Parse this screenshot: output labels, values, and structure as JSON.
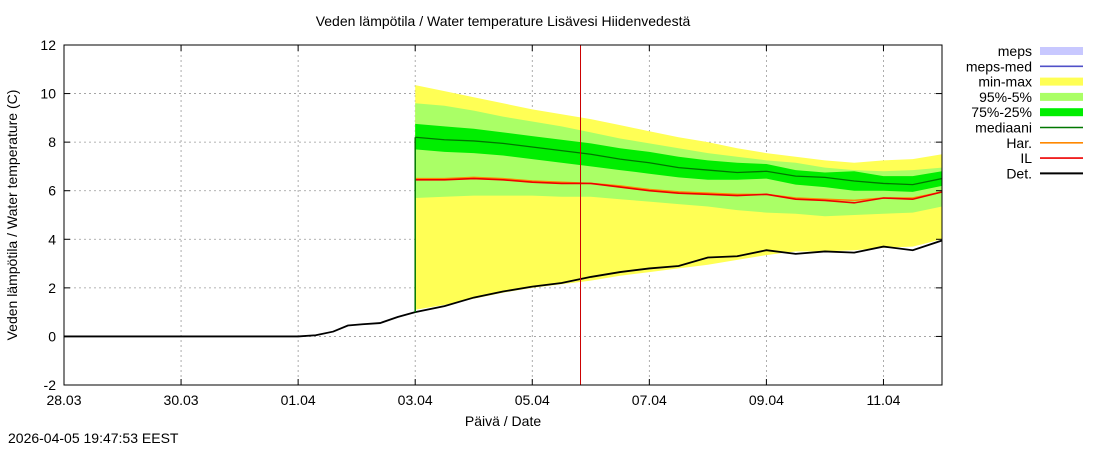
{
  "timestamp": "2026-04-05 19:47:53 EEST",
  "chart_data": {
    "type": "area",
    "title": "Veden lämpötila / Water temperature Lisävesi Hiidenvedestä",
    "xlabel": "Päivä / Date",
    "ylabel": "Veden lämpötila / Water temperature (C)",
    "x_ticks": [
      "28.03",
      "30.03",
      "01.04",
      "03.04",
      "05.04",
      "07.04",
      "09.04",
      "11.04"
    ],
    "x_range": [
      "28.03 00:00",
      "12.04 00:00"
    ],
    "ylim": [
      -2,
      12
    ],
    "y_ticks": [
      -2,
      0,
      2,
      4,
      6,
      8,
      10,
      12
    ],
    "grid": true,
    "legend_position": "outside-right",
    "now_marker": "05.04 19:47",
    "colors": {
      "meps": "#c8c8ff",
      "meps_med": "#5050c8",
      "minmax": "#ffff55",
      "p95_5": "#aaff66",
      "p75_25": "#00ee00",
      "median": "#007700",
      "har": "#ff8800",
      "il": "#ee0000",
      "det": "#000000",
      "now_line": "#cc0000"
    },
    "legend": [
      {
        "key": "meps",
        "label": "meps",
        "kind": "band",
        "color": "#c8c8ff"
      },
      {
        "key": "meps_med",
        "label": "meps-med",
        "kind": "line",
        "color": "#5050c8"
      },
      {
        "key": "minmax",
        "label": "min-max",
        "kind": "band",
        "color": "#ffff55"
      },
      {
        "key": "p95_5",
        "label": "95%-5%",
        "kind": "band",
        "color": "#aaff66"
      },
      {
        "key": "p75_25",
        "label": "75%-25%",
        "kind": "band",
        "color": "#00ee00"
      },
      {
        "key": "median",
        "label": "mediaani",
        "kind": "line",
        "color": "#007700"
      },
      {
        "key": "har",
        "label": "Har.",
        "kind": "line",
        "color": "#ff8800"
      },
      {
        "key": "il",
        "label": "IL",
        "kind": "line",
        "color": "#ee0000"
      },
      {
        "key": "det",
        "label": "Det.",
        "kind": "line",
        "color": "#000000"
      }
    ],
    "forecast_days": [
      6,
      6.5,
      7,
      7.5,
      8,
      8.5,
      9,
      9.5,
      10,
      10.5,
      11,
      11.5,
      12,
      12.5,
      13,
      13.5,
      14,
      14.5,
      15
    ],
    "series": [
      {
        "key": "max",
        "name": "min-max",
        "x": [
          6,
          6.5,
          7,
          7.5,
          8,
          8.5,
          9,
          9.5,
          10,
          10.5,
          11,
          11.5,
          12,
          12.5,
          13,
          13.5,
          14,
          14.5,
          15
        ],
        "values": [
          10.35,
          10.1,
          9.85,
          9.6,
          9.35,
          9.15,
          8.95,
          8.7,
          8.45,
          8.2,
          8.0,
          7.75,
          7.55,
          7.4,
          7.25,
          7.15,
          7.25,
          7.3,
          7.5
        ]
      },
      {
        "key": "min",
        "name": "min-max",
        "x": [
          6,
          6.5,
          7,
          7.5,
          8,
          8.5,
          9,
          9.5,
          10,
          10.5,
          11,
          11.5,
          12,
          12.5,
          13,
          13.5,
          14,
          14.5,
          15
        ],
        "values": [
          1.1,
          1.3,
          1.55,
          1.8,
          2.0,
          2.15,
          2.3,
          2.5,
          2.65,
          2.8,
          2.95,
          3.15,
          3.35,
          3.5,
          3.5,
          3.55,
          3.65,
          3.7,
          4.0
        ]
      },
      {
        "key": "p95",
        "name": "95%-5%",
        "x": [
          6,
          6.5,
          7,
          7.5,
          8,
          8.5,
          9,
          9.5,
          10,
          10.5,
          11,
          11.5,
          12,
          12.5,
          13,
          13.5,
          14,
          14.5,
          15
        ],
        "values": [
          9.6,
          9.5,
          9.3,
          9.05,
          8.85,
          8.65,
          8.4,
          8.15,
          7.95,
          7.75,
          7.55,
          7.4,
          7.25,
          7.15,
          6.95,
          6.85,
          6.8,
          6.85,
          6.95
        ]
      },
      {
        "key": "p5",
        "name": "95%-5%",
        "x": [
          6,
          6.5,
          7,
          7.5,
          8,
          8.5,
          9,
          9.5,
          10,
          10.5,
          11,
          11.5,
          12,
          12.5,
          13,
          13.5,
          14,
          14.5,
          15
        ],
        "values": [
          5.7,
          5.75,
          5.8,
          5.8,
          5.8,
          5.75,
          5.75,
          5.65,
          5.55,
          5.45,
          5.35,
          5.2,
          5.1,
          5.05,
          4.95,
          5.0,
          5.05,
          5.1,
          5.35
        ]
      },
      {
        "key": "p75",
        "name": "75%-25%",
        "x": [
          6,
          6.5,
          7,
          7.5,
          8,
          8.5,
          9,
          9.5,
          10,
          10.5,
          11,
          11.5,
          12,
          12.5,
          13,
          13.5,
          14,
          14.5,
          15
        ],
        "values": [
          8.75,
          8.65,
          8.55,
          8.4,
          8.25,
          8.1,
          7.95,
          7.75,
          7.6,
          7.4,
          7.25,
          7.15,
          7.1,
          6.85,
          6.75,
          6.8,
          6.6,
          6.6,
          6.8
        ]
      },
      {
        "key": "p25",
        "name": "75%-25%",
        "x": [
          6,
          6.5,
          7,
          7.5,
          8,
          8.5,
          9,
          9.5,
          10,
          10.5,
          11,
          11.5,
          12,
          12.5,
          13,
          13.5,
          14,
          14.5,
          15
        ],
        "values": [
          7.7,
          7.6,
          7.55,
          7.45,
          7.3,
          7.15,
          7.0,
          6.85,
          6.7,
          6.55,
          6.45,
          6.45,
          6.5,
          6.25,
          6.15,
          6.0,
          6.0,
          5.95,
          6.2
        ]
      },
      {
        "key": "median",
        "name": "mediaani",
        "x": [
          6,
          6.5,
          7,
          7.5,
          8,
          8.5,
          9,
          9.5,
          10,
          10.5,
          11,
          11.5,
          12,
          12.5,
          13,
          13.5,
          14,
          14.5,
          15
        ],
        "values": [
          8.2,
          8.1,
          8.05,
          7.95,
          7.8,
          7.65,
          7.5,
          7.3,
          7.15,
          6.95,
          6.85,
          6.75,
          6.8,
          6.6,
          6.55,
          6.4,
          6.3,
          6.25,
          6.5
        ]
      },
      {
        "key": "har",
        "name": "Har.",
        "x": [
          6,
          6.5,
          7,
          7.5,
          8,
          8.5,
          9,
          9.5,
          10,
          10.5,
          11,
          11.5,
          12,
          12.5,
          13,
          13.5,
          14,
          14.5,
          15
        ],
        "values": [
          6.5,
          6.5,
          6.55,
          6.5,
          6.4,
          6.35,
          6.3,
          6.2,
          6.05,
          5.95,
          5.9,
          5.85,
          5.85,
          5.7,
          5.65,
          5.6,
          5.7,
          5.7,
          5.95
        ]
      },
      {
        "key": "il",
        "name": "IL",
        "x": [
          6,
          6.5,
          7,
          7.5,
          8,
          8.5,
          9,
          9.5,
          10,
          10.5,
          11,
          11.5,
          12,
          12.5,
          13,
          13.5,
          14,
          14.5,
          15
        ],
        "values": [
          6.45,
          6.45,
          6.5,
          6.45,
          6.35,
          6.3,
          6.3,
          6.15,
          6.0,
          5.9,
          5.85,
          5.8,
          5.85,
          5.65,
          5.6,
          5.5,
          5.7,
          5.65,
          5.95
        ]
      },
      {
        "key": "det",
        "name": "Det.",
        "x": [
          0,
          1,
          2,
          3,
          4,
          4.3,
          4.6,
          4.85,
          5.1,
          5.4,
          5.7,
          6,
          6.5,
          7,
          7.5,
          8,
          8.5,
          9,
          9.5,
          10,
          10.5,
          11,
          11.5,
          12,
          12.5,
          13,
          13.5,
          14,
          14.5,
          15
        ],
        "values": [
          0,
          0,
          0,
          0,
          0,
          0.05,
          0.2,
          0.45,
          0.5,
          0.55,
          0.8,
          1.0,
          1.25,
          1.6,
          1.85,
          2.05,
          2.2,
          2.45,
          2.65,
          2.8,
          2.9,
          3.25,
          3.3,
          3.55,
          3.4,
          3.5,
          3.45,
          3.7,
          3.55,
          3.95
        ]
      }
    ]
  }
}
